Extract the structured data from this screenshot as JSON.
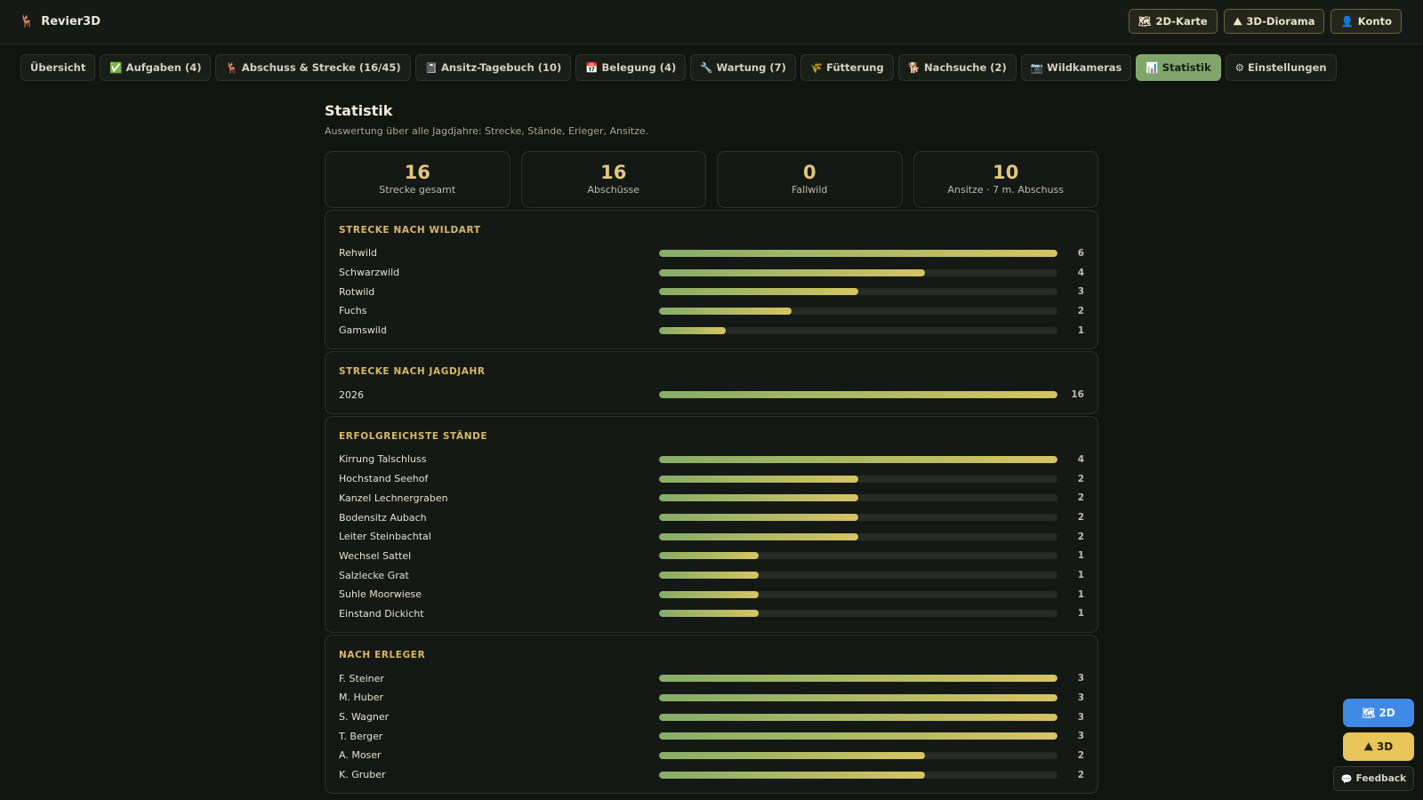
{
  "app": {
    "icon": "🦌",
    "name": "Revier3D"
  },
  "top_actions": [
    {
      "icon": "🗺",
      "label": "2D-Karte"
    },
    {
      "icon": "⛰",
      "label": "3D-Diorama"
    },
    {
      "icon": "👤",
      "label": "Konto"
    }
  ],
  "tabs": [
    {
      "label": "Übersicht",
      "active": false
    },
    {
      "label": "✅ Aufgaben (4)",
      "active": false
    },
    {
      "label": "🦌 Abschuss & Strecke (16/45)",
      "active": false
    },
    {
      "label": "📓 Ansitz-Tagebuch (10)",
      "active": false
    },
    {
      "label": "📅 Belegung (4)",
      "active": false
    },
    {
      "label": "🔧 Wartung (7)",
      "active": false
    },
    {
      "label": "🌾 Fütterung",
      "active": false
    },
    {
      "label": "🐕 Nachsuche (2)",
      "active": false
    },
    {
      "label": "📷 Wildkameras",
      "active": false
    },
    {
      "label": "📊 Statistik",
      "active": true
    },
    {
      "label": "⚙ Einstellungen",
      "active": false
    }
  ],
  "page": {
    "title": "Statistik",
    "subtitle": "Auswertung über alle Jagdjahre: Strecke, Stände, Erleger, Ansitze."
  },
  "kpis": [
    {
      "value": "16",
      "label": "Strecke gesamt"
    },
    {
      "value": "16",
      "label": "Abschüsse"
    },
    {
      "value": "0",
      "label": "Fallwild"
    },
    {
      "value": "10",
      "label": "Ansitze · 7 m. Abschuss"
    }
  ],
  "sections": [
    {
      "title": "STRECKE NACH WILDART",
      "rows": [
        {
          "label": "Rehwild",
          "value": 6
        },
        {
          "label": "Schwarzwild",
          "value": 4
        },
        {
          "label": "Rotwild",
          "value": 3
        },
        {
          "label": "Fuchs",
          "value": 2
        },
        {
          "label": "Gamswild",
          "value": 1
        }
      ]
    },
    {
      "title": "STRECKE NACH JAGDJAHR",
      "rows": [
        {
          "label": "2026",
          "value": 16
        }
      ]
    },
    {
      "title": "ERFOLGREICHSTE STÄNDE",
      "rows": [
        {
          "label": "Kirrung Talschluss",
          "value": 4
        },
        {
          "label": "Hochstand Seehof",
          "value": 2
        },
        {
          "label": "Kanzel Lechnergraben",
          "value": 2
        },
        {
          "label": "Bodensitz Aubach",
          "value": 2
        },
        {
          "label": "Leiter Steinbachtal",
          "value": 2
        },
        {
          "label": "Wechsel Sattel",
          "value": 1
        },
        {
          "label": "Salzlecke Grat",
          "value": 1
        },
        {
          "label": "Suhle Moorwiese",
          "value": 1
        },
        {
          "label": "Einstand Dickicht",
          "value": 1
        }
      ]
    },
    {
      "title": "NACH ERLEGER",
      "rows": [
        {
          "label": "F. Steiner",
          "value": 3
        },
        {
          "label": "M. Huber",
          "value": 3
        },
        {
          "label": "S. Wagner",
          "value": 3
        },
        {
          "label": "T. Berger",
          "value": 3
        },
        {
          "label": "A. Moser",
          "value": 2
        },
        {
          "label": "K. Gruber",
          "value": 2
        }
      ]
    }
  ],
  "dock": [
    {
      "icon": "🗺",
      "label": "2D"
    },
    {
      "icon": "⛰",
      "label": "3D"
    }
  ],
  "feedback": {
    "icon": "💬",
    "label": "Feedback"
  }
}
